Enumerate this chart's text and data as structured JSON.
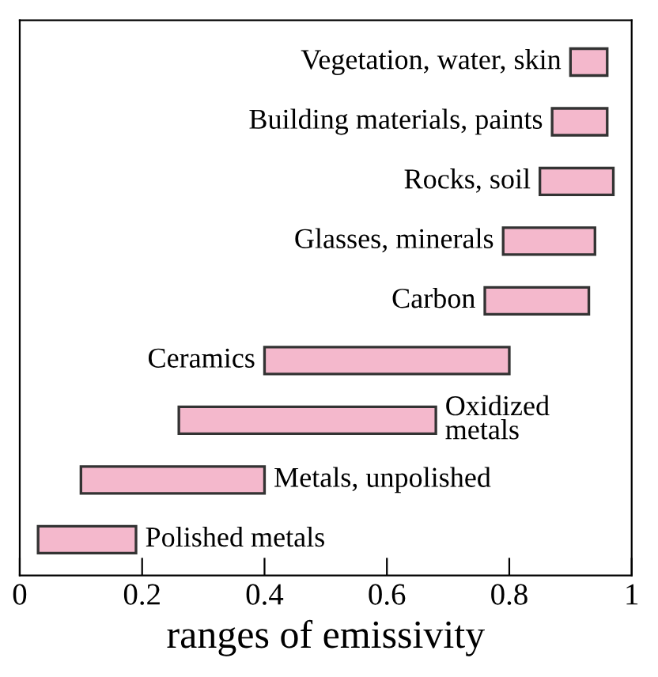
{
  "chart_data": {
    "type": "bar",
    "orientation": "horizontal",
    "xlabel": "ranges of emissivity",
    "categories": [
      "Vegetation, water, skin",
      "Building materials, paints",
      "Rocks, soil",
      "Glasses, minerals",
      "Carbon",
      "Ceramics",
      "Oxidized\nmetals",
      "Metals, unpolished",
      "Polished metals"
    ],
    "base": [
      0.9,
      0.87,
      0.85,
      0.79,
      0.76,
      0.4,
      0.26,
      0.1,
      0.03
    ],
    "values": [
      0.06,
      0.09,
      0.12,
      0.15,
      0.17,
      0.4,
      0.42,
      0.3,
      0.16
    ],
    "color": "#f4b8cc",
    "xlim": [
      0,
      1
    ],
    "xticks": [
      0,
      0.2,
      0.4,
      0.6,
      0.8,
      1
    ],
    "tick_labels": "x",
    "grid": false,
    "legend": false
  }
}
